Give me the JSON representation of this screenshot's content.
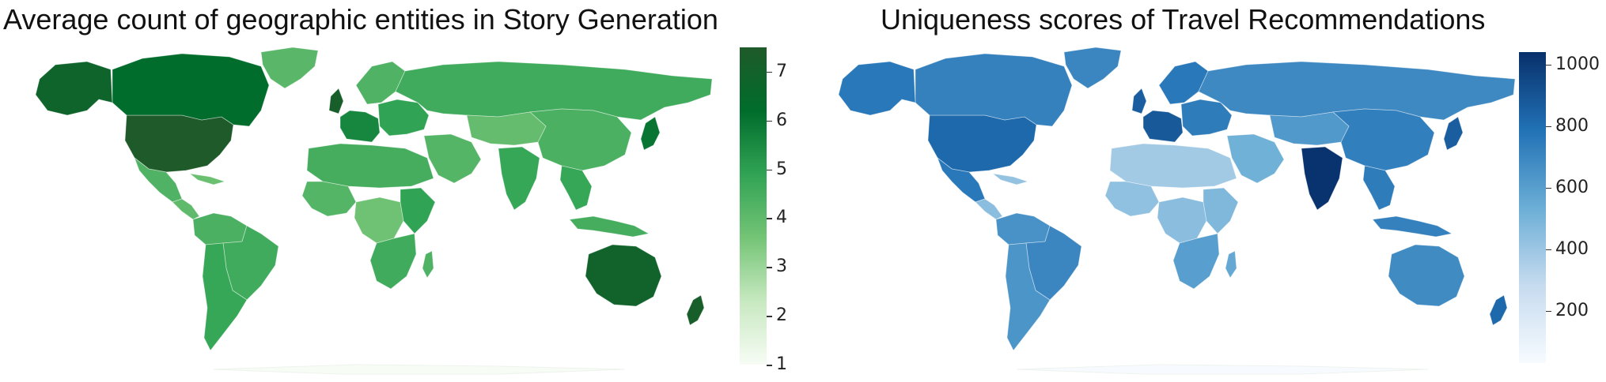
{
  "maps": [
    {
      "title": "Average count of geographic entities in Story Generation",
      "colorbar": {
        "min": 1,
        "max": 7.5,
        "ticks": [
          "1",
          "2",
          "3",
          "4",
          "5",
          "6",
          "7"
        ],
        "tick_values": [
          1,
          2,
          3,
          4,
          5,
          6,
          7
        ],
        "colors": [
          "#f7fcf5",
          "#c7e9c0",
          "#74c476",
          "#31a354",
          "#006d2c",
          "#1f5a2a"
        ]
      },
      "regions": {
        "usa": 7.5,
        "canada": 6.2,
        "alaska": 6.8,
        "greenland": 4.1,
        "mexico": 4.3,
        "central_america": 4.0,
        "caribbean": 3.8,
        "south_america_north": 4.4,
        "brazil": 4.6,
        "south_america_south": 4.8,
        "uk": 7.2,
        "western_europe": 5.6,
        "scandinavia": 4.3,
        "eastern_europe": 4.9,
        "russia": 4.6,
        "middle_east": 4.2,
        "north_africa": 4.5,
        "west_africa": 4.2,
        "central_africa": 3.7,
        "east_africa": 4.9,
        "southern_africa": 4.6,
        "madagascar": 4.3,
        "india": 4.8,
        "china": 4.4,
        "central_asia": 3.9,
        "japan": 6.0,
        "southeast_asia": 4.8,
        "indonesia": 4.5,
        "australia": 6.9,
        "new_zealand": 7.2
      }
    },
    {
      "title": "Uniqueness scores of Travel Recommendations",
      "colorbar": {
        "min": 30,
        "max": 1040,
        "ticks": [
          "200",
          "400",
          "600",
          "800",
          "1000"
        ],
        "tick_values": [
          200,
          400,
          600,
          800,
          1000
        ],
        "colors": [
          "#f7fbff",
          "#c6dbef",
          "#6baed6",
          "#2171b5",
          "#08306b"
        ]
      },
      "regions": {
        "usa": 820,
        "canada": 720,
        "alaska": 760,
        "greenland": 700,
        "mexico": 760,
        "central_america": 450,
        "caribbean": 420,
        "south_america_north": 650,
        "brazil": 700,
        "south_america_south": 640,
        "uk": 860,
        "western_europe": 880,
        "scandinavia": 760,
        "eastern_europe": 740,
        "russia": 690,
        "middle_east": 520,
        "north_africa": 380,
        "west_africa": 430,
        "central_africa": 450,
        "east_africa": 480,
        "southern_africa": 600,
        "madagascar": 560,
        "india": 1030,
        "china": 730,
        "central_asia": 620,
        "japan": 860,
        "southeast_asia": 740,
        "indonesia": 720,
        "australia": 680,
        "new_zealand": 820
      }
    }
  ]
}
